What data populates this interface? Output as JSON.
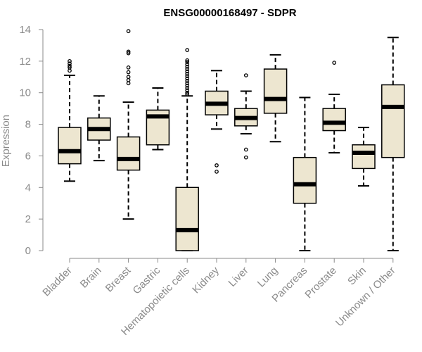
{
  "chart_data": {
    "type": "boxplot",
    "title": "ENSG00000168497 - SDPR",
    "xlabel": "",
    "ylabel": "Expression",
    "ylim": [
      0,
      14
    ],
    "yticks": [
      0,
      2,
      4,
      6,
      8,
      10,
      12,
      14
    ],
    "colors": {
      "box_fill": "#ede6d0",
      "axis": "#8a8a8a",
      "stroke": "#000000"
    },
    "categories": [
      "Bladder",
      "Brain",
      "Breast",
      "Gastric",
      "Hematopoietic cells",
      "Kidney",
      "Liver",
      "Lung",
      "Pancreas",
      "Prostate",
      "Skin",
      "Unknown / Other"
    ],
    "boxes": [
      {
        "name": "Bladder",
        "whisker_low": 4.4,
        "q1": 5.5,
        "median": 6.3,
        "q3": 7.8,
        "whisker_high": 11.1,
        "outliers": [
          11.4,
          11.6,
          11.7,
          11.85,
          12.0
        ]
      },
      {
        "name": "Brain",
        "whisker_low": 5.7,
        "q1": 7.0,
        "median": 7.7,
        "q3": 8.4,
        "whisker_high": 9.8,
        "outliers": []
      },
      {
        "name": "Breast",
        "whisker_low": 2.0,
        "q1": 5.1,
        "median": 5.8,
        "q3": 7.2,
        "whisker_high": 9.4,
        "outliers": [
          10.6,
          10.8,
          11.0,
          11.3,
          11.6,
          12.5,
          12.6,
          13.9
        ]
      },
      {
        "name": "Gastric",
        "whisker_low": 6.4,
        "q1": 6.7,
        "median": 8.5,
        "q3": 8.9,
        "whisker_high": 10.3,
        "outliers": []
      },
      {
        "name": "Hematopoietic cells",
        "whisker_low": 0.0,
        "q1": 0.0,
        "median": 1.3,
        "q3": 4.0,
        "whisker_high": 9.8,
        "outliers": [
          9.9,
          10.0,
          10.15,
          10.3,
          10.45,
          10.6,
          10.75,
          10.9,
          11.05,
          11.2,
          11.35,
          11.5,
          11.65,
          11.8,
          11.95,
          12.05,
          12.7
        ]
      },
      {
        "name": "Kidney",
        "whisker_low": 7.7,
        "q1": 8.6,
        "median": 9.3,
        "q3": 10.1,
        "whisker_high": 11.4,
        "outliers": [
          5.0,
          5.4
        ]
      },
      {
        "name": "Liver",
        "whisker_low": 7.4,
        "q1": 7.9,
        "median": 8.4,
        "q3": 9.0,
        "whisker_high": 10.1,
        "outliers": [
          5.9,
          6.4,
          11.1
        ]
      },
      {
        "name": "Lung",
        "whisker_low": 6.9,
        "q1": 8.7,
        "median": 9.6,
        "q3": 11.5,
        "whisker_high": 12.4,
        "outliers": []
      },
      {
        "name": "Pancreas",
        "whisker_low": 0.0,
        "q1": 3.0,
        "median": 4.2,
        "q3": 5.9,
        "whisker_high": 9.7,
        "outliers": []
      },
      {
        "name": "Prostate",
        "whisker_low": 6.2,
        "q1": 7.6,
        "median": 8.1,
        "q3": 9.0,
        "whisker_high": 9.9,
        "outliers": [
          11.9
        ]
      },
      {
        "name": "Skin",
        "whisker_low": 4.1,
        "q1": 5.2,
        "median": 6.2,
        "q3": 6.7,
        "whisker_high": 7.8,
        "outliers": []
      },
      {
        "name": "Unknown / Other",
        "whisker_low": 0.0,
        "q1": 5.9,
        "median": 9.1,
        "q3": 10.5,
        "whisker_high": 13.5,
        "outliers": []
      }
    ]
  }
}
